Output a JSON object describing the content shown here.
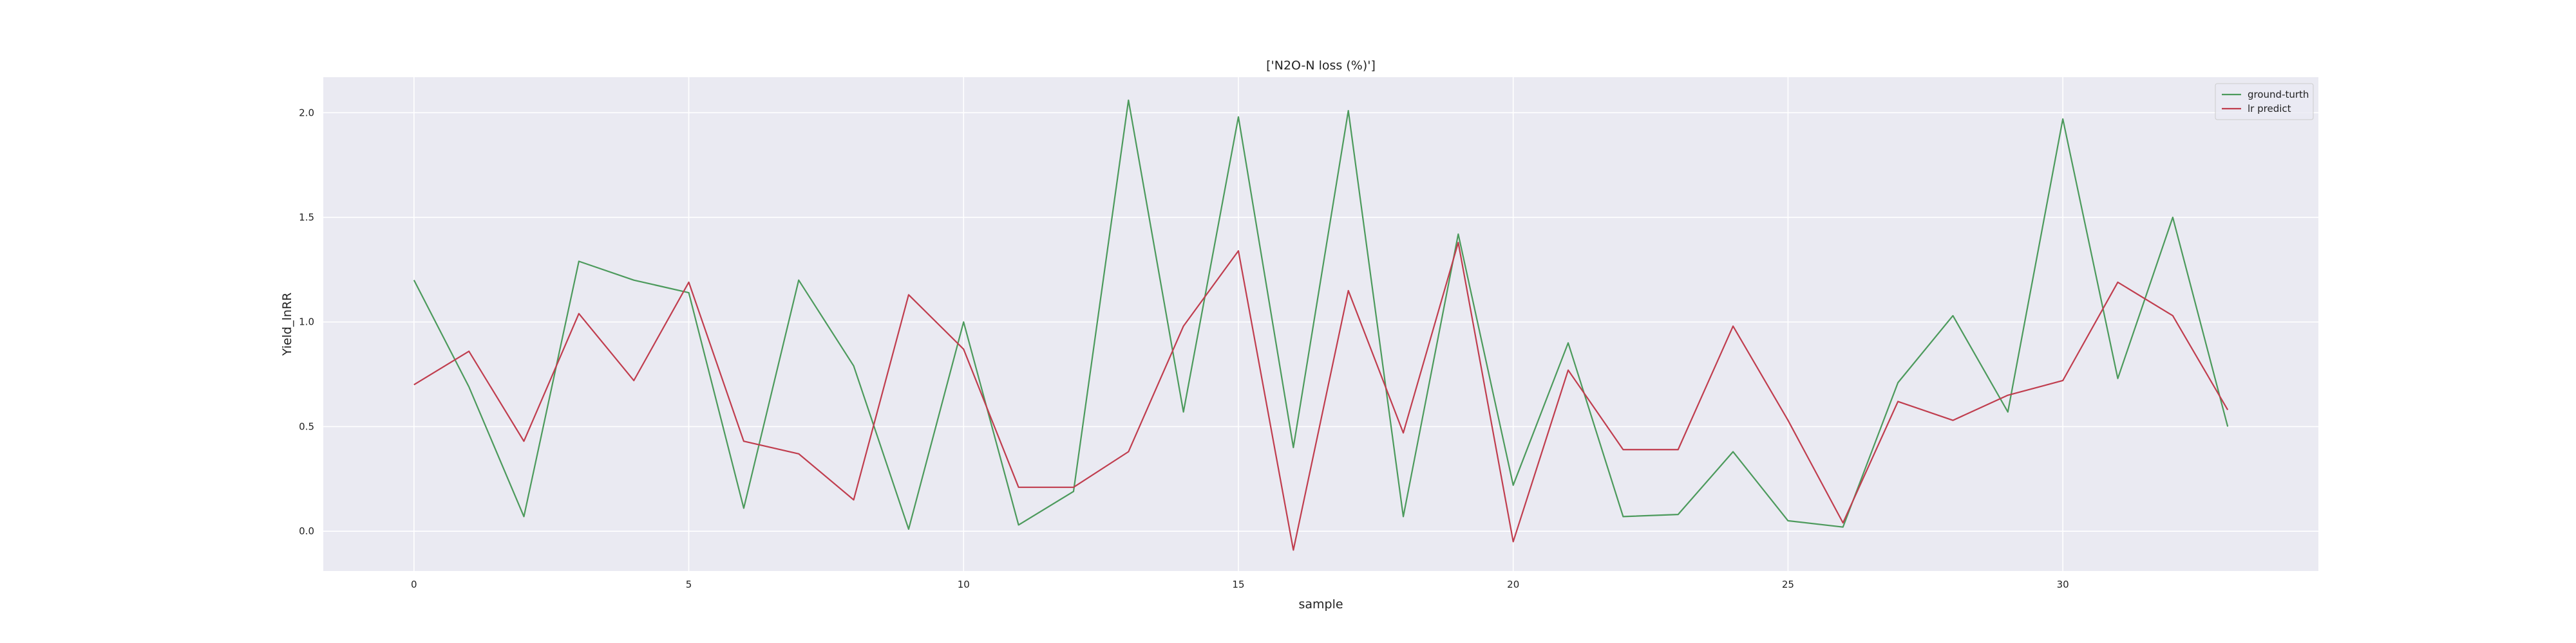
{
  "chart_data": {
    "type": "line",
    "title": "['N2O-N loss (%)']",
    "xlabel": "sample",
    "ylabel": "Yield_lnRR",
    "xlim": [
      -1.65,
      34.65
    ],
    "ylim": [
      -0.19,
      2.17
    ],
    "xticks": [
      0,
      5,
      10,
      15,
      20,
      25,
      30
    ],
    "xtick_labels": [
      "0",
      "5",
      "10",
      "15",
      "20",
      "25",
      "30"
    ],
    "yticks": [
      0.0,
      0.5,
      1.0,
      1.5,
      2.0
    ],
    "ytick_labels": [
      "0.0",
      "0.5",
      "1.0",
      "1.5",
      "2.0"
    ],
    "grid": true,
    "legend_position": "top-right",
    "x": [
      0,
      1,
      2,
      3,
      4,
      5,
      6,
      7,
      8,
      9,
      10,
      11,
      12,
      13,
      14,
      15,
      16,
      17,
      18,
      19,
      20,
      21,
      22,
      23,
      24,
      25,
      26,
      27,
      28,
      29,
      30,
      31,
      32,
      33
    ],
    "series": [
      {
        "name": "ground-turth",
        "color": "#4c9a5c",
        "values": [
          1.2,
          0.69,
          0.07,
          1.29,
          1.2,
          1.14,
          0.11,
          1.2,
          0.79,
          0.01,
          1.0,
          0.03,
          0.19,
          2.06,
          0.57,
          1.98,
          0.4,
          2.01,
          0.07,
          1.42,
          0.22,
          0.9,
          0.07,
          0.08,
          0.38,
          0.05,
          0.02,
          0.71,
          1.03,
          0.57,
          1.97,
          0.73,
          1.5,
          0.5
        ]
      },
      {
        "name": "lr predict",
        "color": "#c03d4e",
        "values": [
          0.7,
          0.86,
          0.43,
          1.04,
          0.72,
          1.19,
          0.43,
          0.37,
          0.15,
          1.13,
          0.87,
          0.21,
          0.21,
          0.38,
          0.98,
          1.34,
          -0.09,
          1.15,
          0.47,
          1.38,
          -0.05,
          0.77,
          0.39,
          0.39,
          0.98,
          0.53,
          0.04,
          0.62,
          0.53,
          0.65,
          0.72,
          1.19,
          1.03,
          0.58
        ]
      }
    ]
  }
}
